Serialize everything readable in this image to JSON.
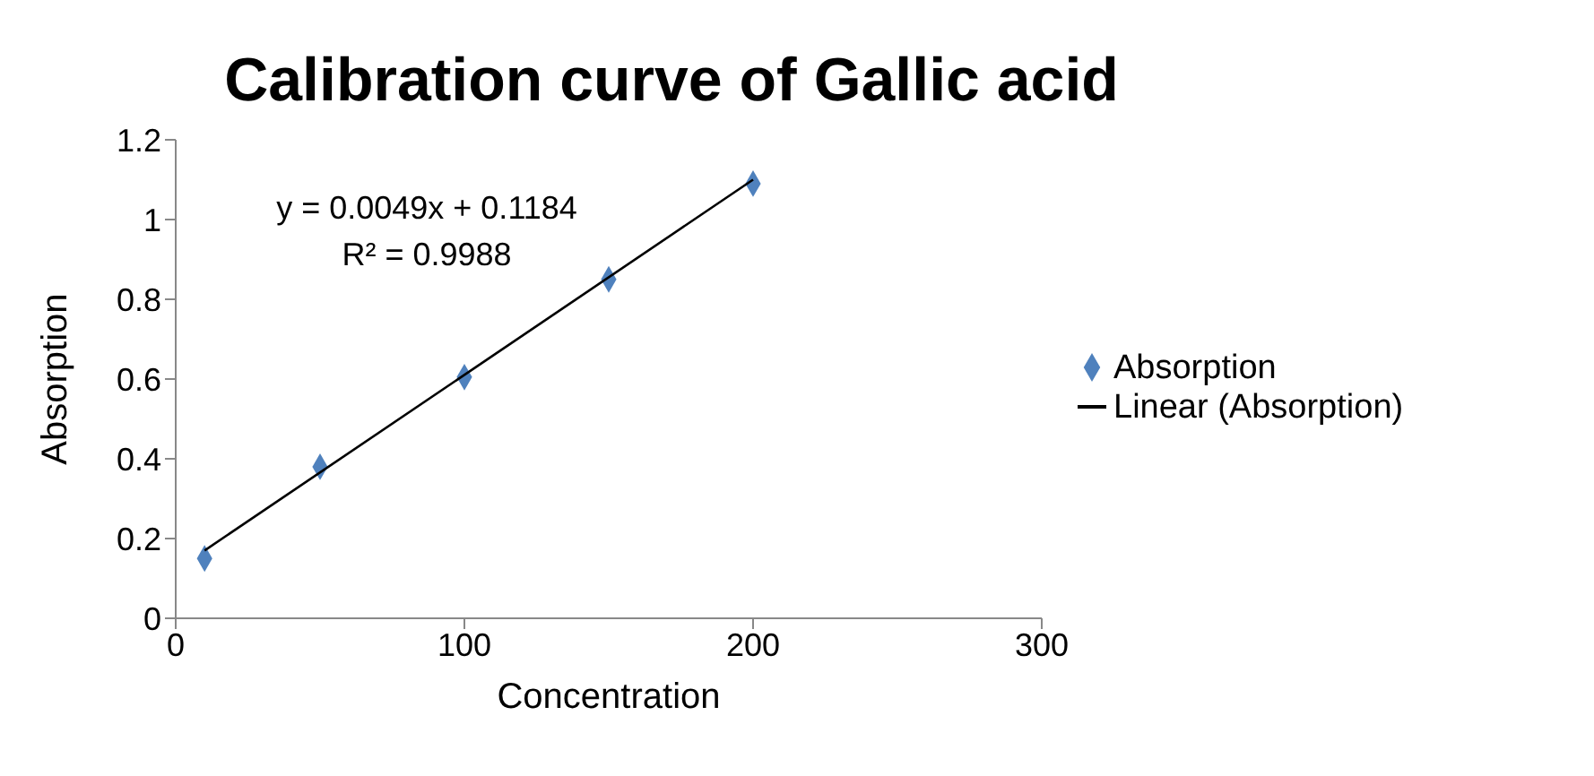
{
  "chart_data": {
    "type": "scatter",
    "title": "Calibration curve of Gallic acid",
    "xlabel": "Concentration",
    "ylabel": "Absorption",
    "annotations": [
      "y = 0.0049x + 0.1184",
      "R² = 0.9988"
    ],
    "xlim": [
      0,
      300
    ],
    "xticks": [
      0,
      100,
      200,
      300
    ],
    "ylim": [
      0,
      1.2
    ],
    "yticks": [
      0,
      0.2,
      0.4,
      0.6,
      0.8,
      1,
      1.2
    ],
    "grid": false,
    "legend": "right",
    "series": [
      {
        "name": "Absorption",
        "marker": "diamond",
        "color": "#4f81bd",
        "x": [
          10,
          50,
          100,
          150,
          200
        ],
        "values": [
          0.15,
          0.38,
          0.605,
          0.85,
          1.09
        ]
      },
      {
        "name": "Linear (Absorption)",
        "type": "line",
        "color": "#000000",
        "x": [
          10,
          200
        ],
        "values": [
          0.17,
          1.1
        ]
      }
    ]
  }
}
